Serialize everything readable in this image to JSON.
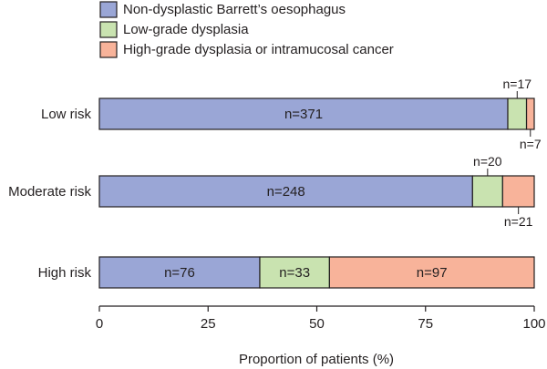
{
  "chart_data": {
    "type": "bar",
    "orientation": "horizontal",
    "stacked": true,
    "normalized": true,
    "categories": [
      "Low risk",
      "Moderate risk",
      "High risk"
    ],
    "series": [
      {
        "name": "Non-dysplastic Barrett’s oesophagus",
        "color": "#9aa6d6",
        "values": [
          371,
          248,
          76
        ],
        "labels": [
          "n=371",
          "n=248",
          "n=76"
        ]
      },
      {
        "name": "Low-grade dysplasia",
        "color": "#c9e3b0",
        "values": [
          17,
          20,
          33
        ],
        "labels": [
          "n=17",
          "n=20",
          "n=33"
        ]
      },
      {
        "name": "High-grade dysplasia or intramucosal cancer",
        "color": "#f8b39a",
        "values": [
          7,
          21,
          97
        ],
        "labels": [
          "n=7",
          "n=21",
          "n=97"
        ]
      }
    ],
    "xlabel": "Proportion of patients (%)",
    "xlim": [
      0,
      100
    ],
    "xticks": [
      0,
      25,
      50,
      75,
      100
    ],
    "grid": false,
    "legend_position": "top"
  }
}
